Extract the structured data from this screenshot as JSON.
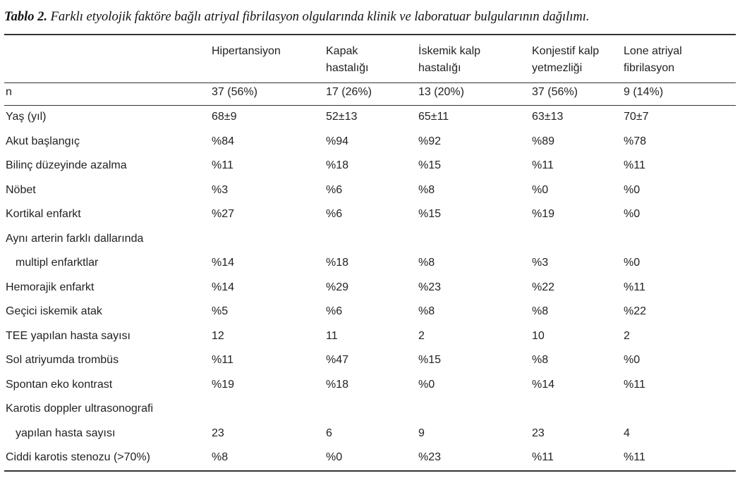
{
  "title": {
    "label": "Tablo 2.",
    "text": "Farklı etyolojik faktöre bağlı atriyal fibrilasyon olgularında klinik ve laboratuar bulgularının dağılımı."
  },
  "table": {
    "columns": [
      [
        "Hipertansiyon"
      ],
      [
        "Kapak",
        "hastalığı"
      ],
      [
        "İskemik kalp",
        "hastalığı"
      ],
      [
        "Konjestif kalp",
        "yetmezliği"
      ],
      [
        "Lone atriyal",
        "fibrilasyon"
      ]
    ],
    "rows": [
      {
        "label": [
          "n"
        ],
        "values": [
          "37 (56%)",
          "17 (26%)",
          "13 (20%)",
          "37 (56%)",
          "9 (14%)"
        ]
      },
      {
        "label": [
          "Yaş (yıl)"
        ],
        "values": [
          "68±9",
          "52±13",
          "65±11",
          "63±13",
          "70±7"
        ]
      },
      {
        "label": [
          "Akut başlangıç"
        ],
        "values": [
          "%84",
          "%94",
          "%92",
          "%89",
          "%78"
        ]
      },
      {
        "label": [
          "Bilinç düzeyinde azalma"
        ],
        "values": [
          "%11",
          "%18",
          "%15",
          "%11",
          "%11"
        ]
      },
      {
        "label": [
          "Nöbet"
        ],
        "values": [
          "%3",
          "%6",
          "%8",
          "%0",
          "%0"
        ]
      },
      {
        "label": [
          "Kortikal enfarkt"
        ],
        "values": [
          "%27",
          "%6",
          "%15",
          "%19",
          "%0"
        ]
      },
      {
        "label": [
          "Aynı arterin farklı dallarında",
          "multipl enfarktlar"
        ],
        "values": [
          "%14",
          "%18",
          "%8",
          "%3",
          "%0"
        ]
      },
      {
        "label": [
          "Hemorajik enfarkt"
        ],
        "values": [
          "%14",
          "%29",
          "%23",
          "%22",
          "%11"
        ]
      },
      {
        "label": [
          "Geçici iskemik atak"
        ],
        "values": [
          "%5",
          "%6",
          "%8",
          "%8",
          "%22"
        ]
      },
      {
        "label": [
          "TEE yapılan hasta sayısı"
        ],
        "values": [
          "12",
          "11",
          "2",
          "10",
          "2"
        ]
      },
      {
        "label": [
          "Sol atriyumda trombüs"
        ],
        "values": [
          "%11",
          "%47",
          "%15",
          "%8",
          "%0"
        ]
      },
      {
        "label": [
          "Spontan eko kontrast"
        ],
        "values": [
          "%19",
          "%18",
          "%0",
          "%14",
          "%11"
        ]
      },
      {
        "label": [
          "Karotis doppler ultrasonografi",
          "yapılan hasta sayısı"
        ],
        "values": [
          "23",
          "6",
          "9",
          "23",
          "4"
        ]
      },
      {
        "label": [
          "Ciddi karotis stenozu (>70%)"
        ],
        "values": [
          "%8",
          "%0",
          "%23",
          "%11",
          "%11"
        ]
      }
    ]
  }
}
